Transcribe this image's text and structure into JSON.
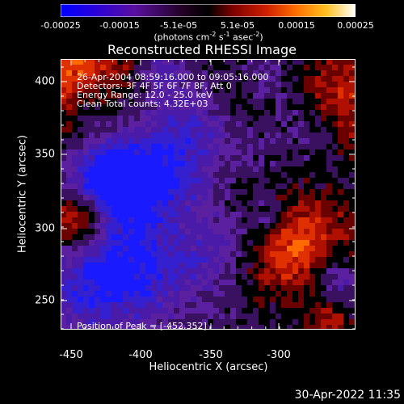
{
  "colorbar": {
    "tick_labels": [
      "-0.00025",
      "-0.00015",
      "-5.1e-05",
      "5.1e-05",
      "0.00015",
      "0.00025"
    ],
    "units_text": "(photons cm",
    "units_sup1": "-2",
    "units_mid": " s",
    "units_sup2": "-1",
    "units_mid2": " asec",
    "units_sup3": "-2",
    "units_end": ")",
    "colors": [
      "#0000ff",
      "#3a00c8",
      "#5a10a0",
      "#000000",
      "#7a0000",
      "#c02000",
      "#ff6000",
      "#ffa000",
      "#ffff80",
      "#ffffff"
    ]
  },
  "title": "Reconstructed RHESSI Image",
  "info": {
    "time_range": "26-Apr-2004 08:59:16.000 to 09:05:16.000",
    "detectors": "Detectors: 3F 4F 5F 6F 7F 8F, Att 0",
    "energy": "Energy Range: 12.0 - 25.0 keV",
    "clean": "Clean     Total counts: 4.32E+03",
    "peak": "Position of Peak = [-452,352]"
  },
  "axes": {
    "xlabel": "Heliocentric X (arcsec)",
    "ylabel": "Heliocentric Y (arcsec)",
    "x_ticks": [
      "-450",
      "-400",
      "-350",
      "-300"
    ],
    "y_ticks": [
      "400",
      "350",
      "300",
      "250"
    ]
  },
  "timestamp": "30-Apr-2022 11:35"
}
